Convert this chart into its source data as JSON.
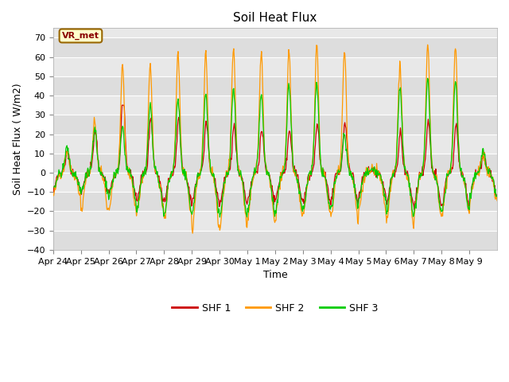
{
  "title": "Soil Heat Flux",
  "ylabel": "Soil Heat Flux ( W/m2)",
  "xlabel": "Time",
  "ylim": [
    -40,
    75
  ],
  "yticks": [
    -40,
    -30,
    -20,
    -10,
    0,
    10,
    20,
    30,
    40,
    50,
    60,
    70
  ],
  "date_labels": [
    "Apr 24",
    "Apr 25",
    "Apr 26",
    "Apr 27",
    "Apr 28",
    "Apr 29",
    "Apr 30",
    "May 1",
    "May 2",
    "May 3",
    "May 4",
    "May 5",
    "May 6",
    "May 7",
    "May 8",
    "May 9"
  ],
  "legend_labels": [
    "SHF 1",
    "SHF 2",
    "SHF 3"
  ],
  "colors": [
    "#cc0000",
    "#ff9900",
    "#00cc00"
  ],
  "annotation_text": "VR_met",
  "annotation_box_color": "#ffffcc",
  "annotation_border_color": "#996600",
  "fig_bg_color": "#ffffff",
  "plot_bg_color": "#e8e8e8",
  "band_color_light": "#f0f0f0",
  "band_color_dark": "#d8d8d8",
  "grid_color": "#ffffff",
  "title_fontsize": 11,
  "axis_fontsize": 9,
  "tick_fontsize": 8,
  "n_days": 16,
  "pts_per_day": 48,
  "day_amps_shf2": [
    12,
    27,
    55,
    57,
    62,
    63,
    64,
    63,
    65,
    67,
    64,
    2,
    57,
    67,
    67,
    10
  ],
  "day_amps_shf1": [
    11,
    22,
    43,
    29,
    28,
    27,
    25,
    22,
    22,
    26,
    27,
    1,
    21,
    27,
    25,
    10
  ],
  "day_amps_shf3": [
    13,
    24,
    24,
    35,
    38,
    41,
    44,
    41,
    46,
    46,
    20,
    1,
    44,
    48,
    48,
    12
  ],
  "night_vals_shf1": [
    -8,
    -10,
    -10,
    -14,
    -15,
    -16,
    -17,
    -15,
    -14,
    -15,
    -15,
    -12,
    -16,
    -17,
    -17,
    -12
  ],
  "night_vals_shf2": [
    -12,
    -20,
    -19,
    -22,
    -24,
    -30,
    -29,
    -25,
    -24,
    -22,
    -24,
    -20,
    -27,
    -22,
    -21,
    -15
  ],
  "night_vals_shf3": [
    -8,
    -10,
    -13,
    -20,
    -21,
    -22,
    -24,
    -20,
    -20,
    -20,
    -18,
    -14,
    -22,
    -20,
    -20,
    -12
  ]
}
